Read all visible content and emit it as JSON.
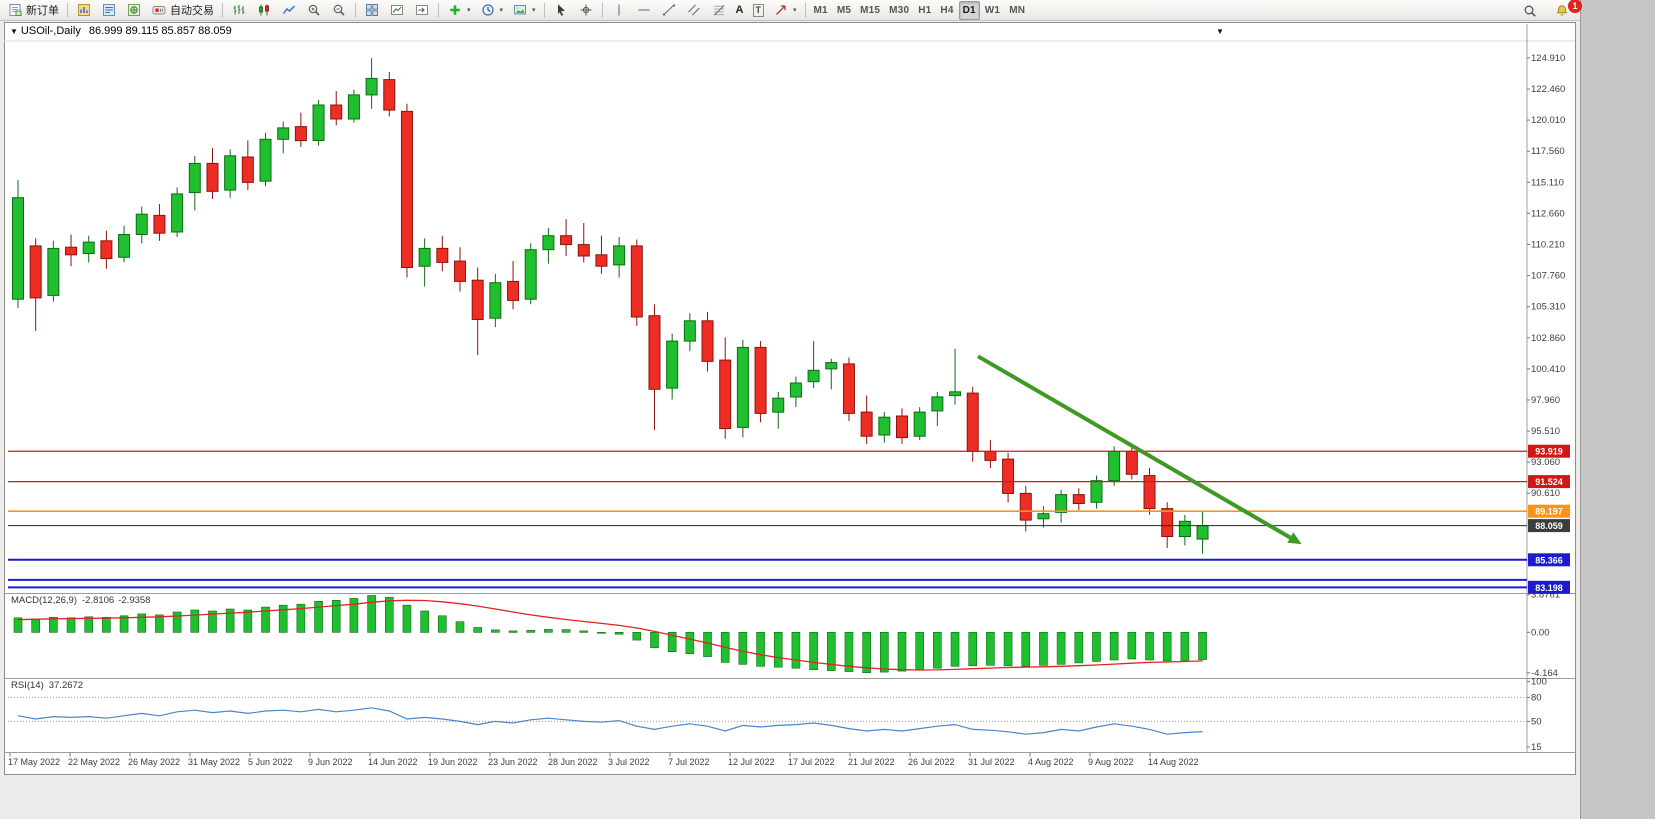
{
  "colors": {
    "up": "#1fbf2f",
    "up_border": "#0a6e14",
    "down": "#ee2e24",
    "down_border": "#8e130b",
    "macd_hist": "#1fbf2f",
    "macd_hist_border": "#0a6e14",
    "macd_signal": "#e02424",
    "rsi_line": "#4a86c8"
  },
  "toolbar": {
    "new_order": {
      "label": "新订单",
      "icon": "new-order-icon"
    },
    "panel_icons": [
      "market-watch-icon",
      "data-window-icon",
      "navigator-icon"
    ],
    "autotrade": {
      "label": "自动交易",
      "icon": "autotrade-icon"
    },
    "chart_type_icons": [
      "bar-chart-icon",
      "candlestick-chart-icon",
      "line-chart-icon"
    ],
    "zoom_icons": [
      "zoom-in-icon",
      "zoom-out-icon"
    ],
    "window_icons": [
      "tile-windows-icon",
      "new-chart-icon",
      "chart-shift-icon"
    ],
    "dropdown_icons": [
      "indicators-icon",
      "timeframe-clock-icon",
      "template-icon"
    ],
    "pointer_icons": [
      "cursor-icon",
      "crosshair-icon"
    ],
    "draw_icons": [
      "vertical-line-icon",
      "horizontal-line-icon",
      "trendline-icon",
      "channel-icon",
      "fibonacci-icon",
      "arrows-icon"
    ],
    "text_tools": {
      "text_label": "A",
      "annotation_label": "T"
    },
    "caret_icon": "▾",
    "timeframes": [
      "M1",
      "M5",
      "M15",
      "M30",
      "H1",
      "H4",
      "D1",
      "W1",
      "MN"
    ],
    "active_timeframe": "D1",
    "right_icons": [
      "search-icon",
      "alerts-icon"
    ],
    "notification_badge": "1"
  },
  "chart": {
    "collapse_icon": "▼",
    "top_marker_icon": "▼",
    "title": "USOil-,Daily",
    "ohlc_text": "86.999 89.115 85.857 88.059"
  },
  "chart_data": {
    "type": "candlestick",
    "symbol": "USOil-",
    "period": "Daily",
    "current_bar": {
      "open": 86.999,
      "high": 89.115,
      "low": 85.857,
      "close": 88.059
    },
    "price_axis": {
      "visible_min": 82.75,
      "visible_max": 126.48,
      "labels": [
        "124.910",
        "122.460",
        "120.010",
        "117.560",
        "115.110",
        "112.660",
        "110.210",
        "107.760",
        "105.310",
        "102.860",
        "100.410",
        "97.960",
        "95.510",
        "93.060",
        "90.610"
      ]
    },
    "date_labels": [
      "17 May 2022",
      "22 May 2022",
      "26 May 2022",
      "31 May 2022",
      "5 Jun 2022",
      "9 Jun 2022",
      "14 Jun 2022",
      "19 Jun 2022",
      "23 Jun 2022",
      "28 Jun 2022",
      "3 Jul 2022",
      "7 Jul 2022",
      "12 Jul 2022",
      "17 Jul 2022",
      "21 Jul 2022",
      "26 Jul 2022",
      "31 Jul 2022",
      "4 Aug 2022",
      "9 Aug 2022",
      "14 Aug 2022"
    ],
    "candles": [
      [
        105.9,
        115.3,
        105.2,
        113.9
      ],
      [
        110.1,
        110.7,
        103.4,
        106.0
      ],
      [
        106.2,
        110.5,
        105.7,
        109.9
      ],
      [
        110.0,
        111.0,
        108.5,
        109.4
      ],
      [
        109.5,
        110.9,
        108.8,
        110.4
      ],
      [
        110.5,
        111.3,
        108.3,
        109.1
      ],
      [
        109.2,
        111.7,
        108.8,
        111.0
      ],
      [
        111.0,
        113.2,
        110.3,
        112.6
      ],
      [
        112.5,
        113.4,
        110.5,
        111.1
      ],
      [
        111.2,
        114.7,
        110.8,
        114.2
      ],
      [
        114.3,
        117.2,
        112.9,
        116.6
      ],
      [
        116.6,
        117.8,
        113.8,
        114.4
      ],
      [
        114.5,
        117.7,
        113.9,
        117.2
      ],
      [
        117.1,
        118.4,
        114.5,
        115.1
      ],
      [
        115.2,
        119.0,
        114.8,
        118.5
      ],
      [
        118.5,
        119.9,
        117.4,
        119.4
      ],
      [
        119.5,
        120.6,
        117.9,
        118.4
      ],
      [
        118.4,
        121.6,
        118.0,
        121.2
      ],
      [
        121.2,
        122.3,
        119.6,
        120.1
      ],
      [
        120.1,
        122.4,
        119.8,
        122.0
      ],
      [
        122.0,
        124.9,
        120.9,
        123.3
      ],
      [
        123.2,
        123.8,
        120.3,
        120.8
      ],
      [
        120.7,
        121.3,
        107.6,
        108.4
      ],
      [
        108.5,
        110.7,
        106.9,
        109.9
      ],
      [
        109.9,
        110.9,
        108.1,
        108.8
      ],
      [
        108.9,
        110.0,
        106.5,
        107.3
      ],
      [
        107.4,
        108.4,
        101.5,
        104.3
      ],
      [
        104.4,
        107.9,
        103.7,
        107.2
      ],
      [
        107.3,
        108.9,
        105.1,
        105.8
      ],
      [
        105.9,
        110.3,
        105.5,
        109.8
      ],
      [
        109.8,
        111.5,
        108.7,
        110.9
      ],
      [
        110.9,
        112.2,
        109.3,
        110.2
      ],
      [
        110.2,
        111.9,
        108.8,
        109.3
      ],
      [
        109.4,
        110.9,
        107.9,
        108.5
      ],
      [
        108.6,
        110.8,
        107.6,
        110.1
      ],
      [
        110.1,
        110.6,
        103.8,
        104.5
      ],
      [
        104.6,
        105.5,
        95.6,
        98.8
      ],
      [
        98.9,
        103.2,
        98.0,
        102.6
      ],
      [
        102.6,
        104.8,
        101.8,
        104.2
      ],
      [
        104.2,
        104.9,
        100.2,
        101.0
      ],
      [
        101.1,
        102.9,
        94.9,
        95.7
      ],
      [
        95.8,
        102.7,
        95.0,
        102.1
      ],
      [
        102.1,
        102.6,
        96.2,
        96.9
      ],
      [
        97.0,
        98.6,
        95.7,
        98.1
      ],
      [
        98.2,
        99.8,
        97.4,
        99.3
      ],
      [
        99.4,
        102.6,
        98.9,
        100.3
      ],
      [
        100.4,
        101.2,
        98.8,
        100.9
      ],
      [
        100.8,
        101.3,
        96.3,
        96.9
      ],
      [
        97.0,
        98.3,
        94.5,
        95.1
      ],
      [
        95.2,
        97.0,
        94.6,
        96.6
      ],
      [
        96.7,
        97.3,
        94.5,
        95.0
      ],
      [
        95.1,
        97.4,
        94.8,
        97.0
      ],
      [
        97.1,
        98.6,
        95.9,
        98.2
      ],
      [
        98.3,
        102.0,
        97.6,
        98.6
      ],
      [
        98.5,
        99.0,
        93.1,
        93.9
      ],
      [
        93.9,
        94.8,
        92.6,
        93.2
      ],
      [
        93.3,
        93.8,
        89.9,
        90.6
      ],
      [
        90.6,
        91.2,
        87.6,
        88.5
      ],
      [
        88.6,
        89.6,
        87.9,
        89.0
      ],
      [
        89.1,
        90.9,
        88.3,
        90.5
      ],
      [
        90.5,
        91.0,
        89.3,
        89.8
      ],
      [
        89.9,
        92.0,
        89.4,
        91.6
      ],
      [
        91.6,
        94.3,
        91.2,
        93.9
      ],
      [
        93.9,
        94.4,
        91.7,
        92.1
      ],
      [
        92.0,
        92.6,
        88.9,
        89.4
      ],
      [
        89.4,
        89.9,
        86.3,
        87.2
      ],
      [
        87.2,
        88.9,
        86.5,
        88.4
      ],
      [
        86.999,
        89.115,
        85.857,
        88.059
      ]
    ],
    "hlines": [
      {
        "price": 93.919,
        "color": "#d01818",
        "width": 1.3,
        "tag": "93.919",
        "tag_color": "#cf1717"
      },
      {
        "price": 91.524,
        "color": "#d01818",
        "width": 1.3,
        "tag": "91.524",
        "tag_color": "#cf1717"
      },
      {
        "price": 89.197,
        "color": "#f7941d",
        "width": 1.6,
        "tag": "89.197",
        "tag_color": "#f7941d"
      },
      {
        "price": 88.059,
        "color": "#262626",
        "width": 1,
        "tag": "88.059",
        "tag_color": "#3d3d3d"
      },
      {
        "price": 85.366,
        "color": "#1c1ccd",
        "width": 2,
        "tag": "85.366",
        "tag_color": "#1c1ccd"
      },
      {
        "price": 83.78,
        "color": "#1c1ccd",
        "width": 2,
        "tag": null,
        "tag_color": null
      },
      {
        "price": 83.198,
        "color": "#1c1ccd",
        "width": 2,
        "tag": "83.198",
        "tag_color": "#1c1ccd"
      }
    ],
    "trend_arrow": {
      "x1_bar": 54.3,
      "y1_price": 101.4,
      "x2_bar": 72.6,
      "y2_price": 86.6,
      "color": "#3f9922",
      "width": 4
    },
    "macd": {
      "label": "MACD(12,26,9)",
      "value_main": "-2.8106",
      "value_signal": "-2.9358",
      "axis_labels": [
        "3.8761",
        "0.00",
        "-4.164"
      ],
      "range": [
        -4.6,
        3.95
      ],
      "histogram": [
        1.5,
        1.4,
        1.55,
        1.5,
        1.6,
        1.55,
        1.7,
        1.9,
        1.8,
        2.1,
        2.3,
        2.2,
        2.4,
        2.3,
        2.6,
        2.8,
        2.9,
        3.2,
        3.3,
        3.5,
        3.8,
        3.6,
        2.8,
        2.2,
        1.7,
        1.1,
        0.5,
        0.25,
        0.15,
        0.2,
        0.3,
        0.28,
        0.15,
        -0.05,
        -0.2,
        -0.8,
        -1.6,
        -2.0,
        -2.2,
        -2.5,
        -3.1,
        -3.3,
        -3.5,
        -3.6,
        -3.7,
        -3.85,
        -3.95,
        -4.05,
        -4.16,
        -4.1,
        -4.0,
        -3.85,
        -3.7,
        -3.5,
        -3.45,
        -3.4,
        -3.45,
        -3.5,
        -3.4,
        -3.3,
        -3.15,
        -3.0,
        -2.85,
        -2.75,
        -2.85,
        -2.95,
        -2.9,
        -2.81
      ],
      "signal": [
        1.3,
        1.35,
        1.4,
        1.42,
        1.45,
        1.47,
        1.5,
        1.55,
        1.6,
        1.68,
        1.78,
        1.88,
        1.98,
        2.08,
        2.2,
        2.32,
        2.45,
        2.6,
        2.75,
        2.9,
        3.1,
        3.25,
        3.3,
        3.28,
        3.15,
        2.95,
        2.7,
        2.4,
        2.1,
        1.8,
        1.55,
        1.32,
        1.12,
        0.92,
        0.72,
        0.45,
        0.1,
        -0.3,
        -0.7,
        -1.1,
        -1.55,
        -1.95,
        -2.3,
        -2.6,
        -2.85,
        -3.1,
        -3.3,
        -3.5,
        -3.65,
        -3.78,
        -3.85,
        -3.88,
        -3.87,
        -3.82,
        -3.75,
        -3.68,
        -3.62,
        -3.58,
        -3.55,
        -3.5,
        -3.44,
        -3.36,
        -3.27,
        -3.18,
        -3.1,
        -3.05,
        -3.0,
        -2.94
      ]
    },
    "rsi": {
      "label": "RSI(14)",
      "value_text": "37.2672",
      "axis_labels": [
        "100",
        "80",
        "50",
        "15"
      ],
      "levels": [
        80,
        50
      ],
      "range": [
        13,
        103
      ],
      "values": [
        57,
        53,
        56,
        55,
        56,
        54,
        57,
        60,
        57,
        62,
        64,
        61,
        63,
        60,
        63,
        64,
        62,
        65,
        62,
        64,
        67,
        63,
        53,
        55,
        53,
        50,
        46,
        50,
        48,
        52,
        54,
        52,
        50,
        49,
        51,
        44,
        40,
        44,
        47,
        44,
        38,
        45,
        43,
        45,
        46,
        48,
        45,
        41,
        38,
        40,
        38,
        41,
        44,
        46,
        40,
        39,
        37,
        34,
        36,
        40,
        38,
        43,
        47,
        44,
        40,
        34,
        36,
        37.27
      ]
    }
  }
}
